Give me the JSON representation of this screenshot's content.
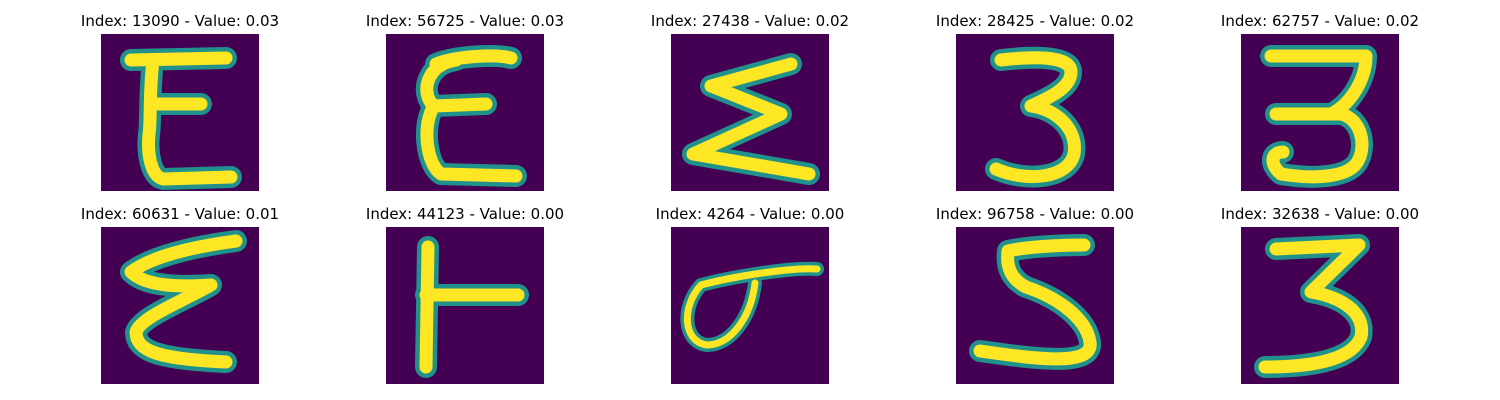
{
  "colors": {
    "background": "#440154",
    "stroke_outer": "#21918c",
    "stroke_inner": "#fde725"
  },
  "samples": [
    {
      "title": "Index: 13090 - Value: 0.03",
      "glyph": "epsilon-upright"
    },
    {
      "title": "Index: 56725 - Value: 0.03",
      "glyph": "epsilon-wide"
    },
    {
      "title": "Index: 27438 - Value: 0.02",
      "glyph": "sigma"
    },
    {
      "title": "Index: 28425 - Value: 0.02",
      "glyph": "three"
    },
    {
      "title": "Index: 62757 - Value: 0.02",
      "glyph": "three-flat-top"
    },
    {
      "title": "Index: 60631 - Value: 0.01",
      "glyph": "zigzag-epsilon"
    },
    {
      "title": "Index: 44123 - Value: 0.00",
      "glyph": "t-sideways"
    },
    {
      "title": "Index: 4264 - Value: 0.00",
      "glyph": "loop-sigma"
    },
    {
      "title": "Index: 96758 - Value: 0.00",
      "glyph": "five"
    },
    {
      "title": "Index: 32638 - Value: 0.00",
      "glyph": "three-angular"
    }
  ]
}
